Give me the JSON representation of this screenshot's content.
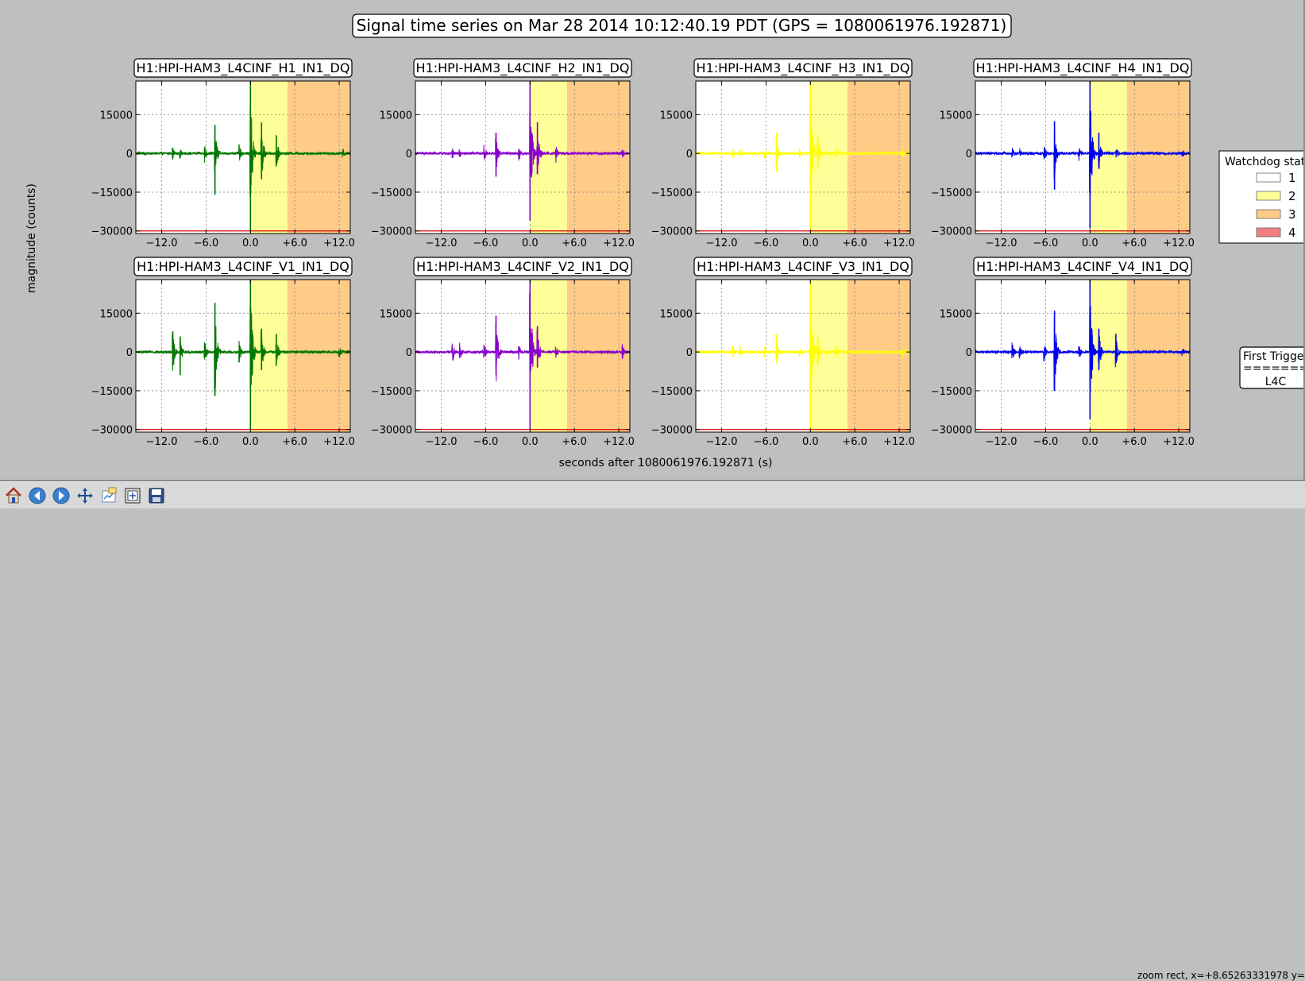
{
  "figure": {
    "title": "Signal time series on Mar 28 2014 10:12:40.19 PDT (GPS = 1080061976.192871)",
    "ylabel": "magnitude (counts)",
    "xlabel": "seconds after 1080061976.192871 (s)"
  },
  "legend": {
    "title": "Watchdog state",
    "entries": [
      {
        "label": "1",
        "color": "#ffffff"
      },
      {
        "label": "2",
        "color": "#ffff99"
      },
      {
        "label": "3",
        "color": "#ffcc88"
      },
      {
        "label": "4",
        "color": "#f08080"
      }
    ]
  },
  "first_trigger": {
    "title": "First Trigger",
    "separator": "========",
    "value": "L4C"
  },
  "toolbar": {
    "status_text": "zoom rect, x=+8.65263331978 y="
  },
  "chart_data": {
    "type": "line",
    "shared": {
      "xlim": [
        -15.5,
        13.5
      ],
      "ylim": [
        -31000,
        28000
      ],
      "xticks": [
        -12,
        -6,
        0,
        6,
        12
      ],
      "xtick_labels": [
        "−12.0",
        "−6.0",
        "0.0",
        "+6.0",
        "+12.0"
      ],
      "yticks": [
        15000,
        0,
        -15000,
        -30000
      ],
      "ytick_labels": [
        "15000",
        "0",
        "−15000",
        "−30000"
      ],
      "grid": true,
      "state_regions": [
        {
          "state": "2",
          "x": [
            0,
            5
          ]
        },
        {
          "state": "3",
          "x": [
            5,
            13.5
          ]
        }
      ],
      "threshold_line_y": -30000,
      "threshold_color": "#dd0000"
    },
    "panels": [
      {
        "title": "H1:HPI-HAM3_L4CINF_H1_IN1_DQ",
        "color": "#007700",
        "bursts": [
          {
            "t": -10.5,
            "amp": 2500
          },
          {
            "t": -9.5,
            "amp": 2000
          },
          {
            "t": -6.2,
            "amp": 4000
          },
          {
            "t": -4.8,
            "amp": 11000,
            "min": -16000
          },
          {
            "t": -1.5,
            "amp": 3500
          },
          {
            "t": 0.0,
            "amp": 28000,
            "min": -30000
          },
          {
            "t": 1.5,
            "amp": 12000,
            "min": -10000
          },
          {
            "t": 3.5,
            "amp": 7000,
            "min": -5000
          },
          {
            "t": 12.5,
            "amp": 2500
          }
        ]
      },
      {
        "title": "H1:HPI-HAM3_L4CINF_H2_IN1_DQ",
        "color": "#8800cc",
        "bursts": [
          {
            "t": -10.5,
            "amp": 2500
          },
          {
            "t": -9.5,
            "amp": 2000
          },
          {
            "t": -6.2,
            "amp": 3500
          },
          {
            "t": -4.6,
            "amp": 8000,
            "min": -9000
          },
          {
            "t": -1.5,
            "amp": 3000
          },
          {
            "t": 0.0,
            "amp": 28000,
            "min": -26000
          },
          {
            "t": 1.0,
            "amp": 12000,
            "min": -8000
          },
          {
            "t": 3.5,
            "amp": 4000
          },
          {
            "t": 12.5,
            "amp": 2000
          }
        ]
      },
      {
        "title": "H1:HPI-HAM3_L4CINF_H3_IN1_DQ",
        "color": "#ffff00",
        "bursts": [
          {
            "t": -10.5,
            "amp": 2000
          },
          {
            "t": -9.5,
            "amp": 1800
          },
          {
            "t": -6.2,
            "amp": 3000
          },
          {
            "t": -4.6,
            "amp": 8000,
            "min": -7000
          },
          {
            "t": -1.5,
            "amp": 2500
          },
          {
            "t": 0.0,
            "amp": 28000,
            "min": -30000
          },
          {
            "t": 1.0,
            "amp": 7000,
            "min": -6000
          },
          {
            "t": 3.5,
            "amp": 3000
          },
          {
            "t": 12.5,
            "amp": 1500
          }
        ]
      },
      {
        "title": "H1:HPI-HAM3_L4CINF_H4_IN1_DQ",
        "color": "#0000ee",
        "bursts": [
          {
            "t": -10.5,
            "amp": 2500
          },
          {
            "t": -9.5,
            "amp": 2000
          },
          {
            "t": -6.2,
            "amp": 3500
          },
          {
            "t": -4.8,
            "amp": 12500,
            "min": -14000
          },
          {
            "t": -1.5,
            "amp": 3000
          },
          {
            "t": 0.0,
            "amp": 28000,
            "min": -29000
          },
          {
            "t": 1.2,
            "amp": 8000,
            "min": -6000
          },
          {
            "t": 3.5,
            "amp": 3500
          },
          {
            "t": 12.5,
            "amp": 2000
          }
        ]
      },
      {
        "title": "H1:HPI-HAM3_L4CINF_V1_IN1_DQ",
        "color": "#007700",
        "bursts": [
          {
            "t": -10.5,
            "amp": 8000,
            "min": -5000
          },
          {
            "t": -9.5,
            "amp": 6000,
            "min": -9000
          },
          {
            "t": -6.2,
            "amp": 5000
          },
          {
            "t": -4.8,
            "amp": 19000,
            "min": -17000
          },
          {
            "t": -1.5,
            "amp": 5000
          },
          {
            "t": 0.0,
            "amp": 28000,
            "min": -30000
          },
          {
            "t": 1.5,
            "amp": 9000,
            "min": -7000
          },
          {
            "t": 3.5,
            "amp": 7000,
            "min": -5000
          },
          {
            "t": 12.0,
            "amp": 3000
          }
        ]
      },
      {
        "title": "H1:HPI-HAM3_L4CINF_V2_IN1_DQ",
        "color": "#8800cc",
        "bursts": [
          {
            "t": -10.5,
            "amp": 5000
          },
          {
            "t": -9.5,
            "amp": 4000
          },
          {
            "t": -6.2,
            "amp": 4000
          },
          {
            "t": -4.6,
            "amp": 14000,
            "min": -9000
          },
          {
            "t": -1.5,
            "amp": 3000
          },
          {
            "t": 0.0,
            "amp": 28000,
            "min": -30000
          },
          {
            "t": 1.0,
            "amp": 10000,
            "min": -6000
          },
          {
            "t": 3.5,
            "amp": 3000
          },
          {
            "t": 12.5,
            "amp": 3000
          }
        ]
      },
      {
        "title": "H1:HPI-HAM3_L4CINF_V3_IN1_DQ",
        "color": "#ffff00",
        "bursts": [
          {
            "t": -10.5,
            "amp": 3000
          },
          {
            "t": -9.5,
            "amp": 2500
          },
          {
            "t": -6.2,
            "amp": 2500
          },
          {
            "t": -4.6,
            "amp": 7000,
            "min": -4000
          },
          {
            "t": -1.5,
            "amp": 2500
          },
          {
            "t": 0.0,
            "amp": 28000,
            "min": -30000
          },
          {
            "t": 1.0,
            "amp": 6000,
            "min": -5000
          },
          {
            "t": 3.5,
            "amp": 2500
          },
          {
            "t": 12.5,
            "amp": 2000
          }
        ]
      },
      {
        "title": "H1:HPI-HAM3_L4CINF_V4_IN1_DQ",
        "color": "#0000ee",
        "bursts": [
          {
            "t": -10.5,
            "amp": 4000
          },
          {
            "t": -9.5,
            "amp": 3000
          },
          {
            "t": -6.2,
            "amp": 4000
          },
          {
            "t": -4.8,
            "amp": 16000,
            "min": -15000
          },
          {
            "t": -1.5,
            "amp": 3500
          },
          {
            "t": 0.0,
            "amp": 28000,
            "min": -26000
          },
          {
            "t": 1.2,
            "amp": 9000,
            "min": -7000
          },
          {
            "t": 3.5,
            "amp": 7000,
            "min": -4000
          },
          {
            "t": 12.5,
            "amp": 2500
          }
        ]
      }
    ]
  }
}
